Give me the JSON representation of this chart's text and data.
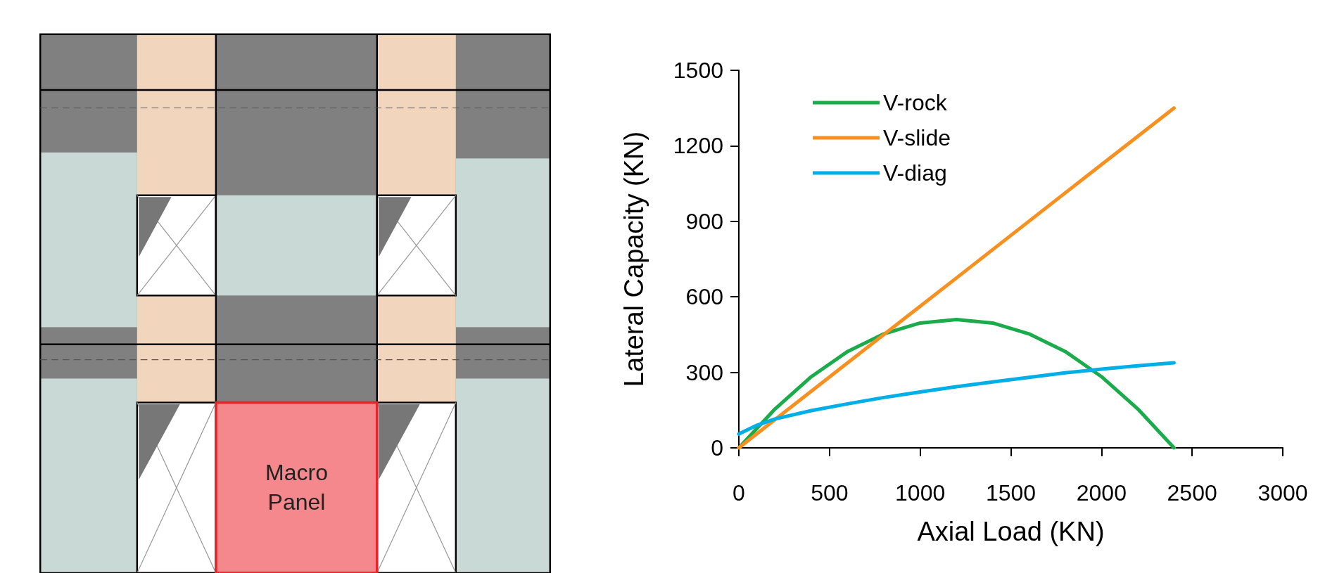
{
  "chart_data": {
    "type": "line",
    "xlabel": "Axial Load (KN)",
    "ylabel": "Lateral Capacity (KN)",
    "xlim": [
      0,
      3000
    ],
    "xticks": [
      0,
      500,
      1000,
      1500,
      2000,
      2500,
      3000
    ],
    "ylim": [
      0,
      1500
    ],
    "yticks": [
      0,
      300,
      600,
      900,
      1200,
      1500
    ],
    "grid": false,
    "legend": "top left",
    "marker": "none",
    "line_style": "solid",
    "annotations": [
      "Macro Panel"
    ],
    "series": [
      {
        "name": "V-rock",
        "color": "#1aab4b",
        "x": [
          0,
          200,
          400,
          600,
          800,
          1000,
          1200,
          1400,
          1600,
          1800,
          2000,
          2200,
          2400
        ],
        "values": [
          0,
          155,
          283,
          383,
          453,
          496,
          510,
          496,
          453,
          383,
          283,
          155,
          0
        ]
      },
      {
        "name": "V-slide",
        "color": "#f7901e",
        "x": [
          0,
          600,
          1200,
          1800,
          2400
        ],
        "values": [
          0,
          338,
          675,
          1013,
          1350
        ]
      },
      {
        "name": "V-diag",
        "color": "#00aee8",
        "x": [
          0,
          100,
          200,
          400,
          600,
          800,
          1000,
          1200,
          1400,
          1600,
          1800,
          2000,
          2200,
          2400
        ],
        "values": [
          55,
          90,
          115,
          148,
          175,
          200,
          222,
          243,
          262,
          280,
          298,
          313,
          326,
          338
        ]
      }
    ]
  }
}
